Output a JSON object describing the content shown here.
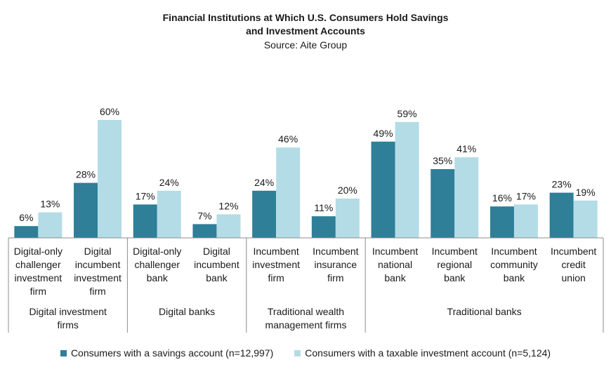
{
  "chart_data": {
    "type": "bar",
    "title_line1": "Financial Institutions at Which U.S. Consumers Hold Savings",
    "title_line2": "and Investment Accounts",
    "subtitle": "Source: Aite Group",
    "ylim": [
      0,
      70
    ],
    "grid": false,
    "legend_position": "bottom",
    "categories": [
      [
        "Digital-only",
        "challenger",
        "investment",
        "firm"
      ],
      [
        "Digital",
        "incumbent",
        "investment",
        "firm"
      ],
      [
        "Digital-only",
        "challenger",
        "bank"
      ],
      [
        "Digital",
        "incumbent",
        "bank"
      ],
      [
        "Incumbent",
        "investment",
        "firm"
      ],
      [
        "Incumbent",
        "insurance",
        "firm"
      ],
      [
        "Incumbent",
        "national",
        "bank"
      ],
      [
        "Incumbent",
        "regional",
        "bank"
      ],
      [
        "Incumbent",
        "community",
        "bank"
      ],
      [
        "Incumbent",
        "credit",
        "union"
      ]
    ],
    "groups": [
      {
        "label": [
          "Digital investment",
          "firms"
        ],
        "count": 2
      },
      {
        "label": [
          "Digital banks"
        ],
        "count": 2
      },
      {
        "label": [
          "Traditional wealth",
          "management firms"
        ],
        "count": 2
      },
      {
        "label": [
          "Traditional banks"
        ],
        "count": 4
      }
    ],
    "series": [
      {
        "name": "Consumers with a savings account (n=12,997)",
        "color": "#2e7f97",
        "values": [
          6,
          28,
          17,
          7,
          24,
          11,
          49,
          35,
          16,
          23
        ],
        "labels": [
          "6%",
          "28%",
          "17%",
          "7%",
          "24%",
          "11%",
          "49%",
          "35%",
          "16%",
          "23%"
        ]
      },
      {
        "name": "Consumers with a taxable investment account (n=5,124)",
        "color": "#b3dce6",
        "values": [
          13,
          60,
          24,
          12,
          46,
          20,
          59,
          41,
          17,
          19
        ],
        "labels": [
          "13%",
          "60%",
          "24%",
          "12%",
          "46%",
          "20%",
          "59%",
          "41%",
          "17%",
          "19%"
        ]
      }
    ]
  }
}
